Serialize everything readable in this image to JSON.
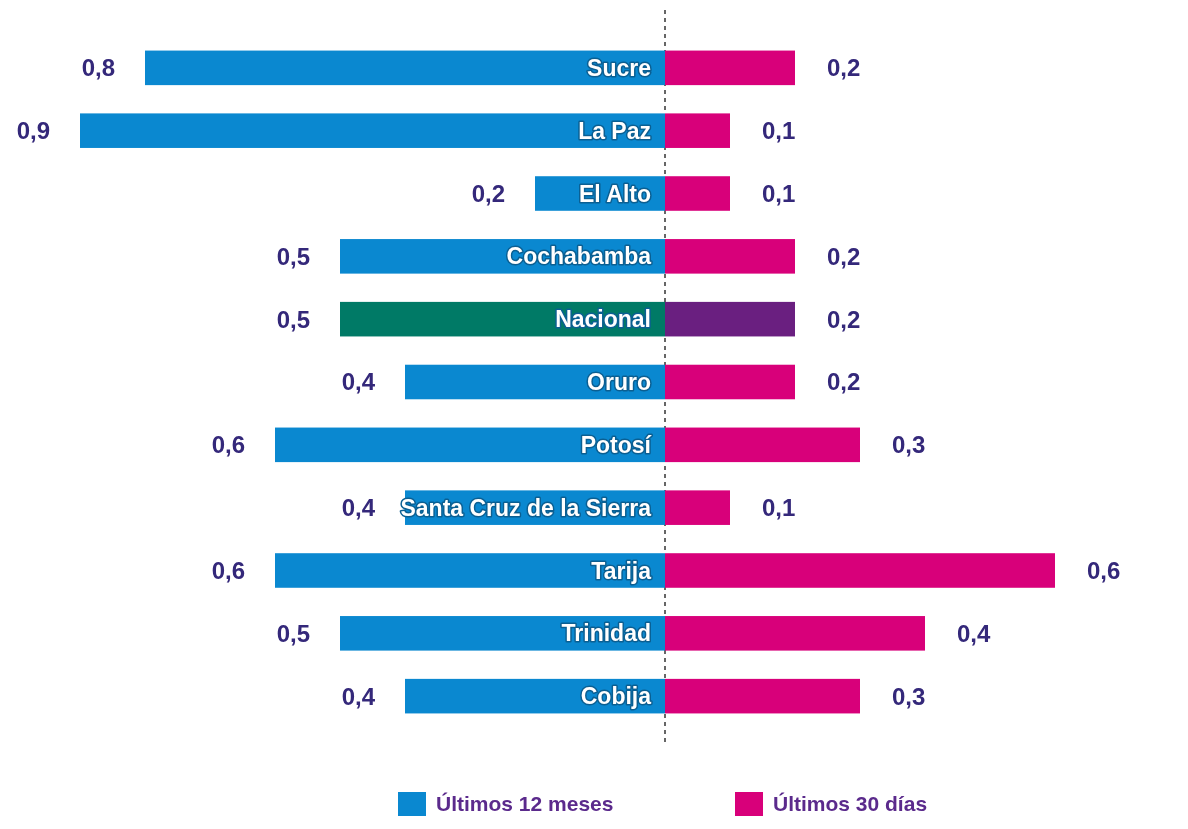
{
  "chart_data": [
    {
      "type": "bar",
      "orientation": "horizontal",
      "categories": [
        "Sucre",
        "La Paz",
        "El Alto",
        "Cochabamba",
        "Nacional",
        "Oruro",
        "Potosí",
        "Santa Cruz de la Sierra",
        "Tarija",
        "Trinidad",
        "Cobija"
      ],
      "series": [
        {
          "name": "Últimos 12 meses",
          "color": "#0a88d0",
          "colors": [
            "#0a88d0",
            "#0a88d0",
            "#0a88d0",
            "#0a88d0",
            "#007a66",
            "#0a88d0",
            "#0a88d0",
            "#0a88d0",
            "#0a88d0",
            "#0a88d0",
            "#0a88d0"
          ],
          "values": [
            0.8,
            0.9,
            0.2,
            0.5,
            0.5,
            0.4,
            0.6,
            0.4,
            0.6,
            0.5,
            0.4
          ],
          "value_labels": [
            "0,8",
            "0,9",
            "0,2",
            "0,5",
            "0,5",
            "0,4",
            "0,6",
            "0,4",
            "0,6",
            "0,5",
            "0,4"
          ]
        }
      ],
      "xlim": [
        0.9,
        0
      ],
      "ref_lines": [
        {
          "axis": "x",
          "value": 0,
          "color": "#666666",
          "line_style": "dashed"
        }
      ],
      "legend": "bottom"
    },
    {
      "type": "bar",
      "orientation": "horizontal",
      "categories": [
        null,
        null,
        null,
        null,
        null,
        null,
        null,
        null,
        null,
        null,
        null
      ],
      "series": [
        {
          "name": "Últimos 30 días",
          "color": "#d8007a",
          "colors": [
            "#d8007a",
            "#d8007a",
            "#d8007a",
            "#d8007a",
            "#6a1f80",
            "#d8007a",
            "#d8007a",
            "#d8007a",
            "#d8007a",
            "#d8007a",
            "#d8007a"
          ],
          "values": [
            0.2,
            0.1,
            0.1,
            0.2,
            0.2,
            0.2,
            0.3,
            0.1,
            0.6,
            0.4,
            0.3
          ],
          "value_labels": [
            "0,2",
            "0,1",
            "0,1",
            "0,2",
            "0,2",
            "0,2",
            "0,3",
            "0,1",
            "0,6",
            "0,4",
            "0,3"
          ]
        }
      ],
      "xlim": [
        0,
        0.6
      ],
      "legend": "bottom"
    }
  ]
}
